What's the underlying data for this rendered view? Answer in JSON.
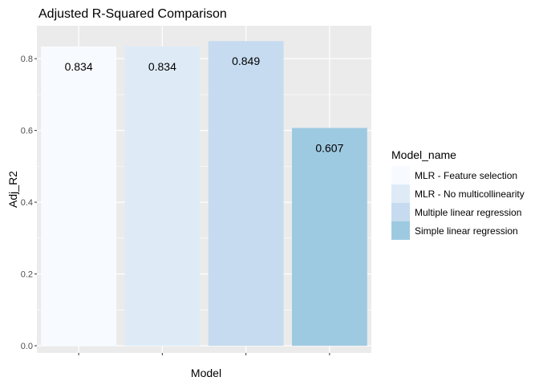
{
  "chart_data": {
    "type": "bar",
    "title": "Adjusted R-Squared Comparison",
    "xlabel": "Model",
    "ylabel": "Adj_R2",
    "categories": [
      "MLR - Feature selection",
      "MLR - No multicollinearity",
      "Multiple linear regression",
      "Simple linear regression"
    ],
    "values": [
      0.834,
      0.834,
      0.849,
      0.607
    ],
    "data_labels": [
      "0.834",
      "0.834",
      "0.849",
      "0.607"
    ],
    "colors": [
      "#f7fbff",
      "#deebf7",
      "#c6dbef",
      "#9ecae1"
    ],
    "ylim": [
      -0.02,
      0.892
    ],
    "yticks": [
      0.0,
      0.2,
      0.4,
      0.6,
      0.8
    ],
    "ytick_labels": [
      "0.0",
      "0.2",
      "0.4",
      "0.6",
      "0.8"
    ],
    "grid": true,
    "x_tick_labels_visible": false,
    "legend": {
      "title": "Model_name",
      "placement": "right",
      "entries": [
        "MLR - Feature selection",
        "MLR - No multicollinearity",
        "Multiple linear regression",
        "Simple linear regression"
      ]
    },
    "panel_background": "#ebebeb",
    "grid_color": "#ffffff"
  }
}
